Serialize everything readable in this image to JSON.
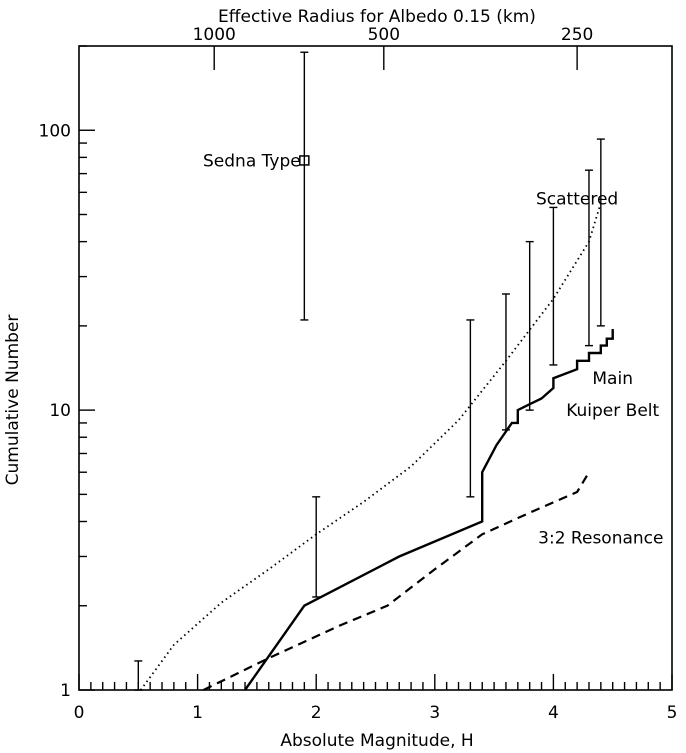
{
  "chart_data": {
    "type": "line",
    "xlabel": "Absolute Magnitude, H",
    "ylabel": "Cumulative Number",
    "top_axis_label": "Effective Radius for Albedo 0.15 (km)",
    "xlim": [
      0,
      5
    ],
    "ylim": [
      1,
      200
    ],
    "y_scale": "log",
    "grid": false,
    "x_ticks": [
      0,
      1,
      2,
      3,
      4,
      5
    ],
    "x_tick_labels": [
      "0",
      "1",
      "2",
      "3",
      "4",
      "5"
    ],
    "y_ticks": [
      1,
      10,
      100
    ],
    "y_tick_labels": [
      "1",
      "10",
      "100"
    ],
    "top_ticks": [
      {
        "label": "1000",
        "h": 1.14
      },
      {
        "label": "500",
        "h": 2.57
      },
      {
        "label": "250",
        "h": 4.2
      }
    ],
    "series": [
      {
        "name": "Main Kuiper Belt",
        "style": "solid",
        "x": [
          1.4,
          1.9,
          2.7,
          3.4,
          3.4,
          3.52,
          3.65,
          3.7,
          3.7,
          3.8,
          3.9,
          4.0,
          4.0,
          4.2,
          4.2,
          4.3,
          4.3,
          4.4,
          4.4,
          4.45,
          4.45,
          4.5,
          4.5
        ],
        "y": [
          1.0,
          2.0,
          3.0,
          4.0,
          6.0,
          7.5,
          9.0,
          9.0,
          10.0,
          10.5,
          11.0,
          12.0,
          13.0,
          14.0,
          15.0,
          15.0,
          16.0,
          16.0,
          17.0,
          17.0,
          18.0,
          18.0,
          19.5
        ]
      },
      {
        "name": "Scattered",
        "style": "dotted",
        "x": [
          0.52,
          0.8,
          1.2,
          1.6,
          2.0,
          2.4,
          2.8,
          3.2,
          3.6,
          4.0,
          4.3,
          4.4
        ],
        "y": [
          1.0,
          1.45,
          2.05,
          2.7,
          3.6,
          4.7,
          6.3,
          9.2,
          15.0,
          25.0,
          40.0,
          55.0
        ]
      },
      {
        "name": "3:2 Resonance",
        "style": "dashed",
        "x": [
          1.05,
          1.6,
          2.2,
          2.6,
          3.0,
          3.4,
          3.8,
          4.2,
          4.3
        ],
        "y": [
          1.0,
          1.3,
          1.7,
          2.0,
          2.7,
          3.6,
          4.3,
          5.1,
          6.0
        ]
      }
    ],
    "error_bars": [
      {
        "x": 0.5,
        "low": 1.0,
        "high": 1.27
      },
      {
        "x": 2.0,
        "low": 2.15,
        "high": 4.9
      },
      {
        "x": 3.3,
        "low": 4.9,
        "high": 21.0
      },
      {
        "x": 3.6,
        "low": 8.5,
        "high": 26.0
      },
      {
        "x": 3.8,
        "low": 10.0,
        "high": 40.0
      },
      {
        "x": 4.0,
        "low": 14.5,
        "high": 53.0
      },
      {
        "x": 4.3,
        "low": 17.0,
        "high": 72.0
      },
      {
        "x": 4.4,
        "low": 20.0,
        "high": 93.0
      },
      {
        "x": 1.9,
        "low": 21.0,
        "high": 190.0
      }
    ],
    "sedna_point": {
      "x": 1.9,
      "y": 78
    },
    "annotations": [
      {
        "text": "Sedna Type",
        "x": 1.92,
        "y": 78,
        "anchor": "end"
      },
      {
        "text": "Scattered",
        "x": 4.2,
        "y": 57,
        "anchor": "middle"
      },
      {
        "text": "Main",
        "x": 4.5,
        "y": 13,
        "anchor": "middle"
      },
      {
        "text": "Kuiper Belt",
        "x": 4.5,
        "y": 10,
        "anchor": "middle"
      },
      {
        "text": "3:2 Resonance",
        "x": 4.4,
        "y": 3.5,
        "anchor": "middle"
      }
    ]
  }
}
